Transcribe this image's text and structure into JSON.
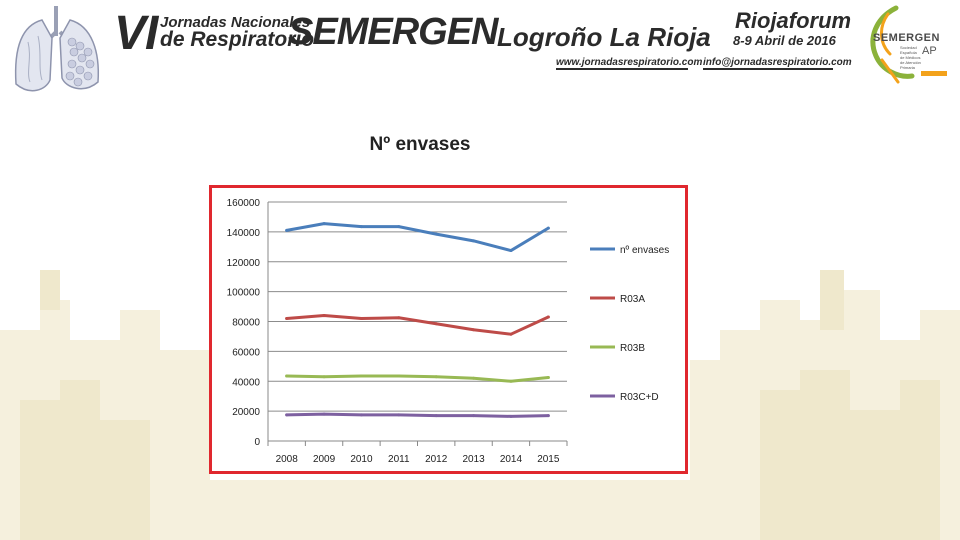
{
  "banner": {
    "edition": "VI",
    "event_line1": "Jornadas Nacionales",
    "event_line2": "de Respiratorio",
    "org": "SEMERGEN",
    "city": "Logroño   La Rioja",
    "venue": "Riojaforum",
    "dates": "8-9 Abril de 2016",
    "website": "www.jornadasrespiratorio.com",
    "email": "info@jornadasrespiratorio.com",
    "logo_name": "SEMERGEN",
    "logo_ap": "AP",
    "logo_subtitle": "Sociedad Española de Médicos de Atención Primaria"
  },
  "slide": {
    "title": "Nº envases"
  },
  "colors": {
    "frame": "#e0282e",
    "series": [
      "#4a7ebb",
      "#be4b48",
      "#98b954",
      "#7d60a0"
    ]
  },
  "chart_data": {
    "type": "line",
    "title": "",
    "xlabel": "",
    "ylabel": "",
    "x": [
      "2008",
      "2009",
      "2010",
      "2011",
      "2012",
      "2013",
      "2014",
      "2015"
    ],
    "ylim": [
      0,
      160000
    ],
    "yticks": [
      "0",
      "20000",
      "40000",
      "60000",
      "80000",
      "100000",
      "120000",
      "140000",
      "160000"
    ],
    "grid": "horizontal",
    "legend_position": "right",
    "series": [
      {
        "name": "nº envases",
        "values": [
          141000,
          145500,
          143500,
          143500,
          138500,
          134000,
          127500,
          142500
        ]
      },
      {
        "name": "R03A",
        "values": [
          82000,
          84000,
          82000,
          82500,
          78500,
          74500,
          71500,
          83000
        ]
      },
      {
        "name": "R03B",
        "values": [
          43500,
          43000,
          43500,
          43500,
          43000,
          42000,
          40000,
          42500
        ]
      },
      {
        "name": "R03C+D",
        "values": [
          17500,
          18000,
          17500,
          17500,
          17000,
          17000,
          16500,
          17000
        ]
      }
    ]
  }
}
